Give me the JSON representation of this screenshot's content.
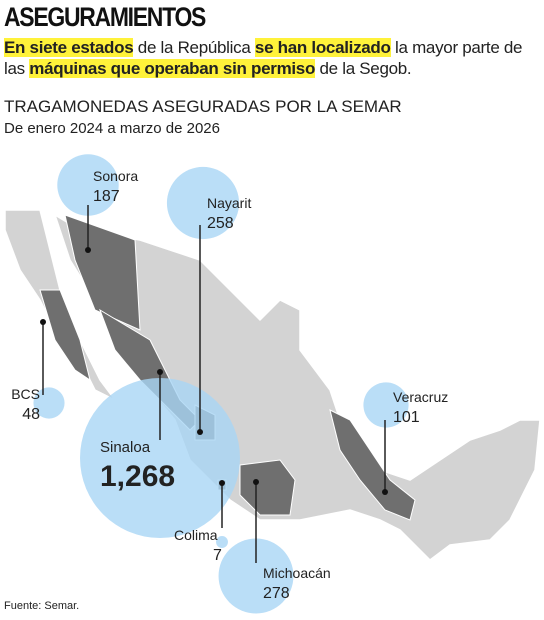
{
  "header": {
    "title": "ASEGURAMIENTOS",
    "intro": [
      {
        "text": "En siete estados",
        "highlight": true
      },
      {
        "text": " de la República ",
        "highlight": false
      },
      {
        "text": "se han localizado",
        "highlight": true
      },
      {
        "text": " la mayor parte de las ",
        "highlight": false
      },
      {
        "text": "máquinas que operaban sin permiso",
        "highlight": true
      },
      {
        "text": " de la Segob.",
        "highlight": false
      }
    ],
    "subtitle": "TRAGAMONEDAS ASEGURADAS POR LA SEMAR",
    "period": "De enero 2024 a marzo de 2026"
  },
  "states": [
    {
      "name": "Sonora",
      "value": 187
    },
    {
      "name": "Nayarit",
      "value": 258
    },
    {
      "name": "BCS",
      "value": 48
    },
    {
      "name": "Sinaloa",
      "value": 1268,
      "value_label": "1,268"
    },
    {
      "name": "Colima",
      "value": 7
    },
    {
      "name": "Michoacán",
      "value": 278
    },
    {
      "name": "Veracruz",
      "value": 101
    }
  ],
  "source": "Fuente: Semar."
}
